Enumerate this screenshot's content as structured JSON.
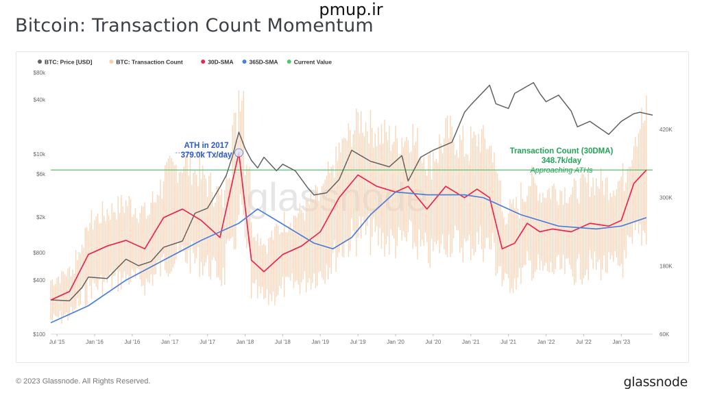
{
  "site_watermark": "pmup.ir",
  "page_title": "Bitcoin: Transaction Count Momentum",
  "footer": {
    "copyright": "© 2023 Glassnode. All Rights Reserved.",
    "logo": "glassnode"
  },
  "plot_watermark": "glassnode",
  "colors": {
    "price": "#616161",
    "tx_count": "#f7cfae",
    "sma30": "#e8254f",
    "sma365": "#4a7fd9",
    "current_value": "#52c46b",
    "ath_label": "#2b59c3",
    "current_label": "#22a455"
  },
  "chart_data": {
    "type": "line",
    "legend_position": "top-left",
    "legend": [
      {
        "name": "BTC: Price [USD]",
        "color": "#616161"
      },
      {
        "name": "BTC: Transaction Count",
        "color": "#f7cfae"
      },
      {
        "name": "30D-SMA",
        "color": "#e8254f"
      },
      {
        "name": "365D-SMA",
        "color": "#4a7fd9"
      },
      {
        "name": "Current Value",
        "color": "#52c46b"
      }
    ],
    "x_ticks": [
      "Jul '15",
      "Jan '16",
      "Jul '16",
      "Jan '17",
      "Jul '17",
      "Jan '18",
      "Jul '18",
      "Jan '19",
      "Jul '19",
      "Jan '20",
      "Jul '20",
      "Jan '21",
      "Jul '21",
      "Jan '22",
      "Jul '22",
      "Jan '23"
    ],
    "x_range": [
      "2015-06",
      "2023-06"
    ],
    "y_left": {
      "scale": "log",
      "ticks": [
        "$100",
        "$400",
        "$800",
        "$2k",
        "$6k",
        "$10k",
        "$40k",
        "$80k"
      ],
      "tick_values": [
        100,
        400,
        800,
        2000,
        6000,
        10000,
        40000,
        80000
      ],
      "range": [
        100,
        80000
      ]
    },
    "y_right": {
      "ticks": [
        "60K",
        "180K",
        "300K",
        "420K"
      ],
      "tick_values": [
        60000,
        180000,
        300000,
        420000
      ],
      "range": [
        60000,
        520000
      ]
    },
    "current_value": 348700,
    "annotations": [
      {
        "lines": [
          "ATH in 2017",
          "379.0k Tx/day"
        ],
        "date": "2017-12",
        "value": 379000
      },
      {
        "lines": [
          "Transaction Count (30DMA)",
          "348.7k/day",
          "Approaching ATHs"
        ],
        "date": "2023-03",
        "value": 348700
      }
    ],
    "series": [
      {
        "name": "BTC: Price [USD]",
        "axis": "left",
        "points": [
          [
            "2015-06",
            240
          ],
          [
            "2015-09",
            235
          ],
          [
            "2015-11",
            330
          ],
          [
            "2015-12",
            430
          ],
          [
            "2016-03",
            415
          ],
          [
            "2016-06",
            680
          ],
          [
            "2016-08",
            575
          ],
          [
            "2016-10",
            640
          ],
          [
            "2016-12",
            920
          ],
          [
            "2017-03",
            1080
          ],
          [
            "2017-05",
            2200
          ],
          [
            "2017-07",
            2500
          ],
          [
            "2017-09",
            4300
          ],
          [
            "2017-10",
            5800
          ],
          [
            "2017-11",
            9500
          ],
          [
            "2017-12",
            17500
          ],
          [
            "2018-01",
            11500
          ],
          [
            "2018-02",
            8500
          ],
          [
            "2018-03",
            7000
          ],
          [
            "2018-04",
            9200
          ],
          [
            "2018-06",
            6500
          ],
          [
            "2018-07",
            7700
          ],
          [
            "2018-09",
            6500
          ],
          [
            "2018-11",
            4200
          ],
          [
            "2018-12",
            3500
          ],
          [
            "2019-02",
            3700
          ],
          [
            "2019-04",
            5200
          ],
          [
            "2019-06",
            11000
          ],
          [
            "2019-07",
            10000
          ],
          [
            "2019-09",
            8300
          ],
          [
            "2019-12",
            7200
          ],
          [
            "2020-02",
            9600
          ],
          [
            "2020-03",
            5000
          ],
          [
            "2020-05",
            9200
          ],
          [
            "2020-07",
            11000
          ],
          [
            "2020-10",
            13500
          ],
          [
            "2020-12",
            29000
          ],
          [
            "2021-01",
            35000
          ],
          [
            "2021-04",
            58000
          ],
          [
            "2021-05",
            36000
          ],
          [
            "2021-07",
            32000
          ],
          [
            "2021-08",
            47000
          ],
          [
            "2021-11",
            62000
          ],
          [
            "2021-12",
            47000
          ],
          [
            "2022-01",
            38000
          ],
          [
            "2022-03",
            45000
          ],
          [
            "2022-05",
            30000
          ],
          [
            "2022-06",
            20000
          ],
          [
            "2022-08",
            23000
          ],
          [
            "2022-11",
            16500
          ],
          [
            "2023-01",
            23000
          ],
          [
            "2023-03",
            28000
          ],
          [
            "2023-04",
            29000
          ],
          [
            "2023-06",
            27000
          ]
        ]
      },
      {
        "name": "30D-SMA",
        "axis": "right",
        "points": [
          [
            "2015-06",
            120000
          ],
          [
            "2015-09",
            135000
          ],
          [
            "2015-12",
            200000
          ],
          [
            "2016-03",
            215000
          ],
          [
            "2016-06",
            225000
          ],
          [
            "2016-09",
            210000
          ],
          [
            "2016-12",
            265000
          ],
          [
            "2017-03",
            280000
          ],
          [
            "2017-06",
            260000
          ],
          [
            "2017-09",
            230000
          ],
          [
            "2017-12",
            379000
          ],
          [
            "2018-02",
            190000
          ],
          [
            "2018-04",
            170000
          ],
          [
            "2018-07",
            200000
          ],
          [
            "2018-10",
            215000
          ],
          [
            "2019-01",
            240000
          ],
          [
            "2019-04",
            300000
          ],
          [
            "2019-07",
            340000
          ],
          [
            "2019-10",
            320000
          ],
          [
            "2020-01",
            310000
          ],
          [
            "2020-03",
            320000
          ],
          [
            "2020-06",
            280000
          ],
          [
            "2020-09",
            320000
          ],
          [
            "2020-12",
            300000
          ],
          [
            "2021-02",
            315000
          ],
          [
            "2021-04",
            300000
          ],
          [
            "2021-06",
            210000
          ],
          [
            "2021-08",
            220000
          ],
          [
            "2021-10",
            255000
          ],
          [
            "2021-12",
            240000
          ],
          [
            "2022-02",
            245000
          ],
          [
            "2022-05",
            240000
          ],
          [
            "2022-08",
            255000
          ],
          [
            "2022-11",
            250000
          ],
          [
            "2023-01",
            260000
          ],
          [
            "2023-03",
            325000
          ],
          [
            "2023-05",
            348700
          ]
        ]
      },
      {
        "name": "365D-SMA",
        "axis": "right",
        "points": [
          [
            "2015-06",
            80000
          ],
          [
            "2015-12",
            110000
          ],
          [
            "2016-06",
            155000
          ],
          [
            "2016-12",
            190000
          ],
          [
            "2017-06",
            225000
          ],
          [
            "2017-12",
            255000
          ],
          [
            "2018-03",
            280000
          ],
          [
            "2018-06",
            260000
          ],
          [
            "2018-12",
            220000
          ],
          [
            "2019-03",
            210000
          ],
          [
            "2019-06",
            230000
          ],
          [
            "2019-09",
            270000
          ],
          [
            "2020-01",
            310000
          ],
          [
            "2020-06",
            305000
          ],
          [
            "2020-12",
            305000
          ],
          [
            "2021-03",
            300000
          ],
          [
            "2021-09",
            270000
          ],
          [
            "2022-03",
            250000
          ],
          [
            "2022-09",
            245000
          ],
          [
            "2023-01",
            250000
          ],
          [
            "2023-05",
            265000
          ]
        ]
      }
    ]
  }
}
